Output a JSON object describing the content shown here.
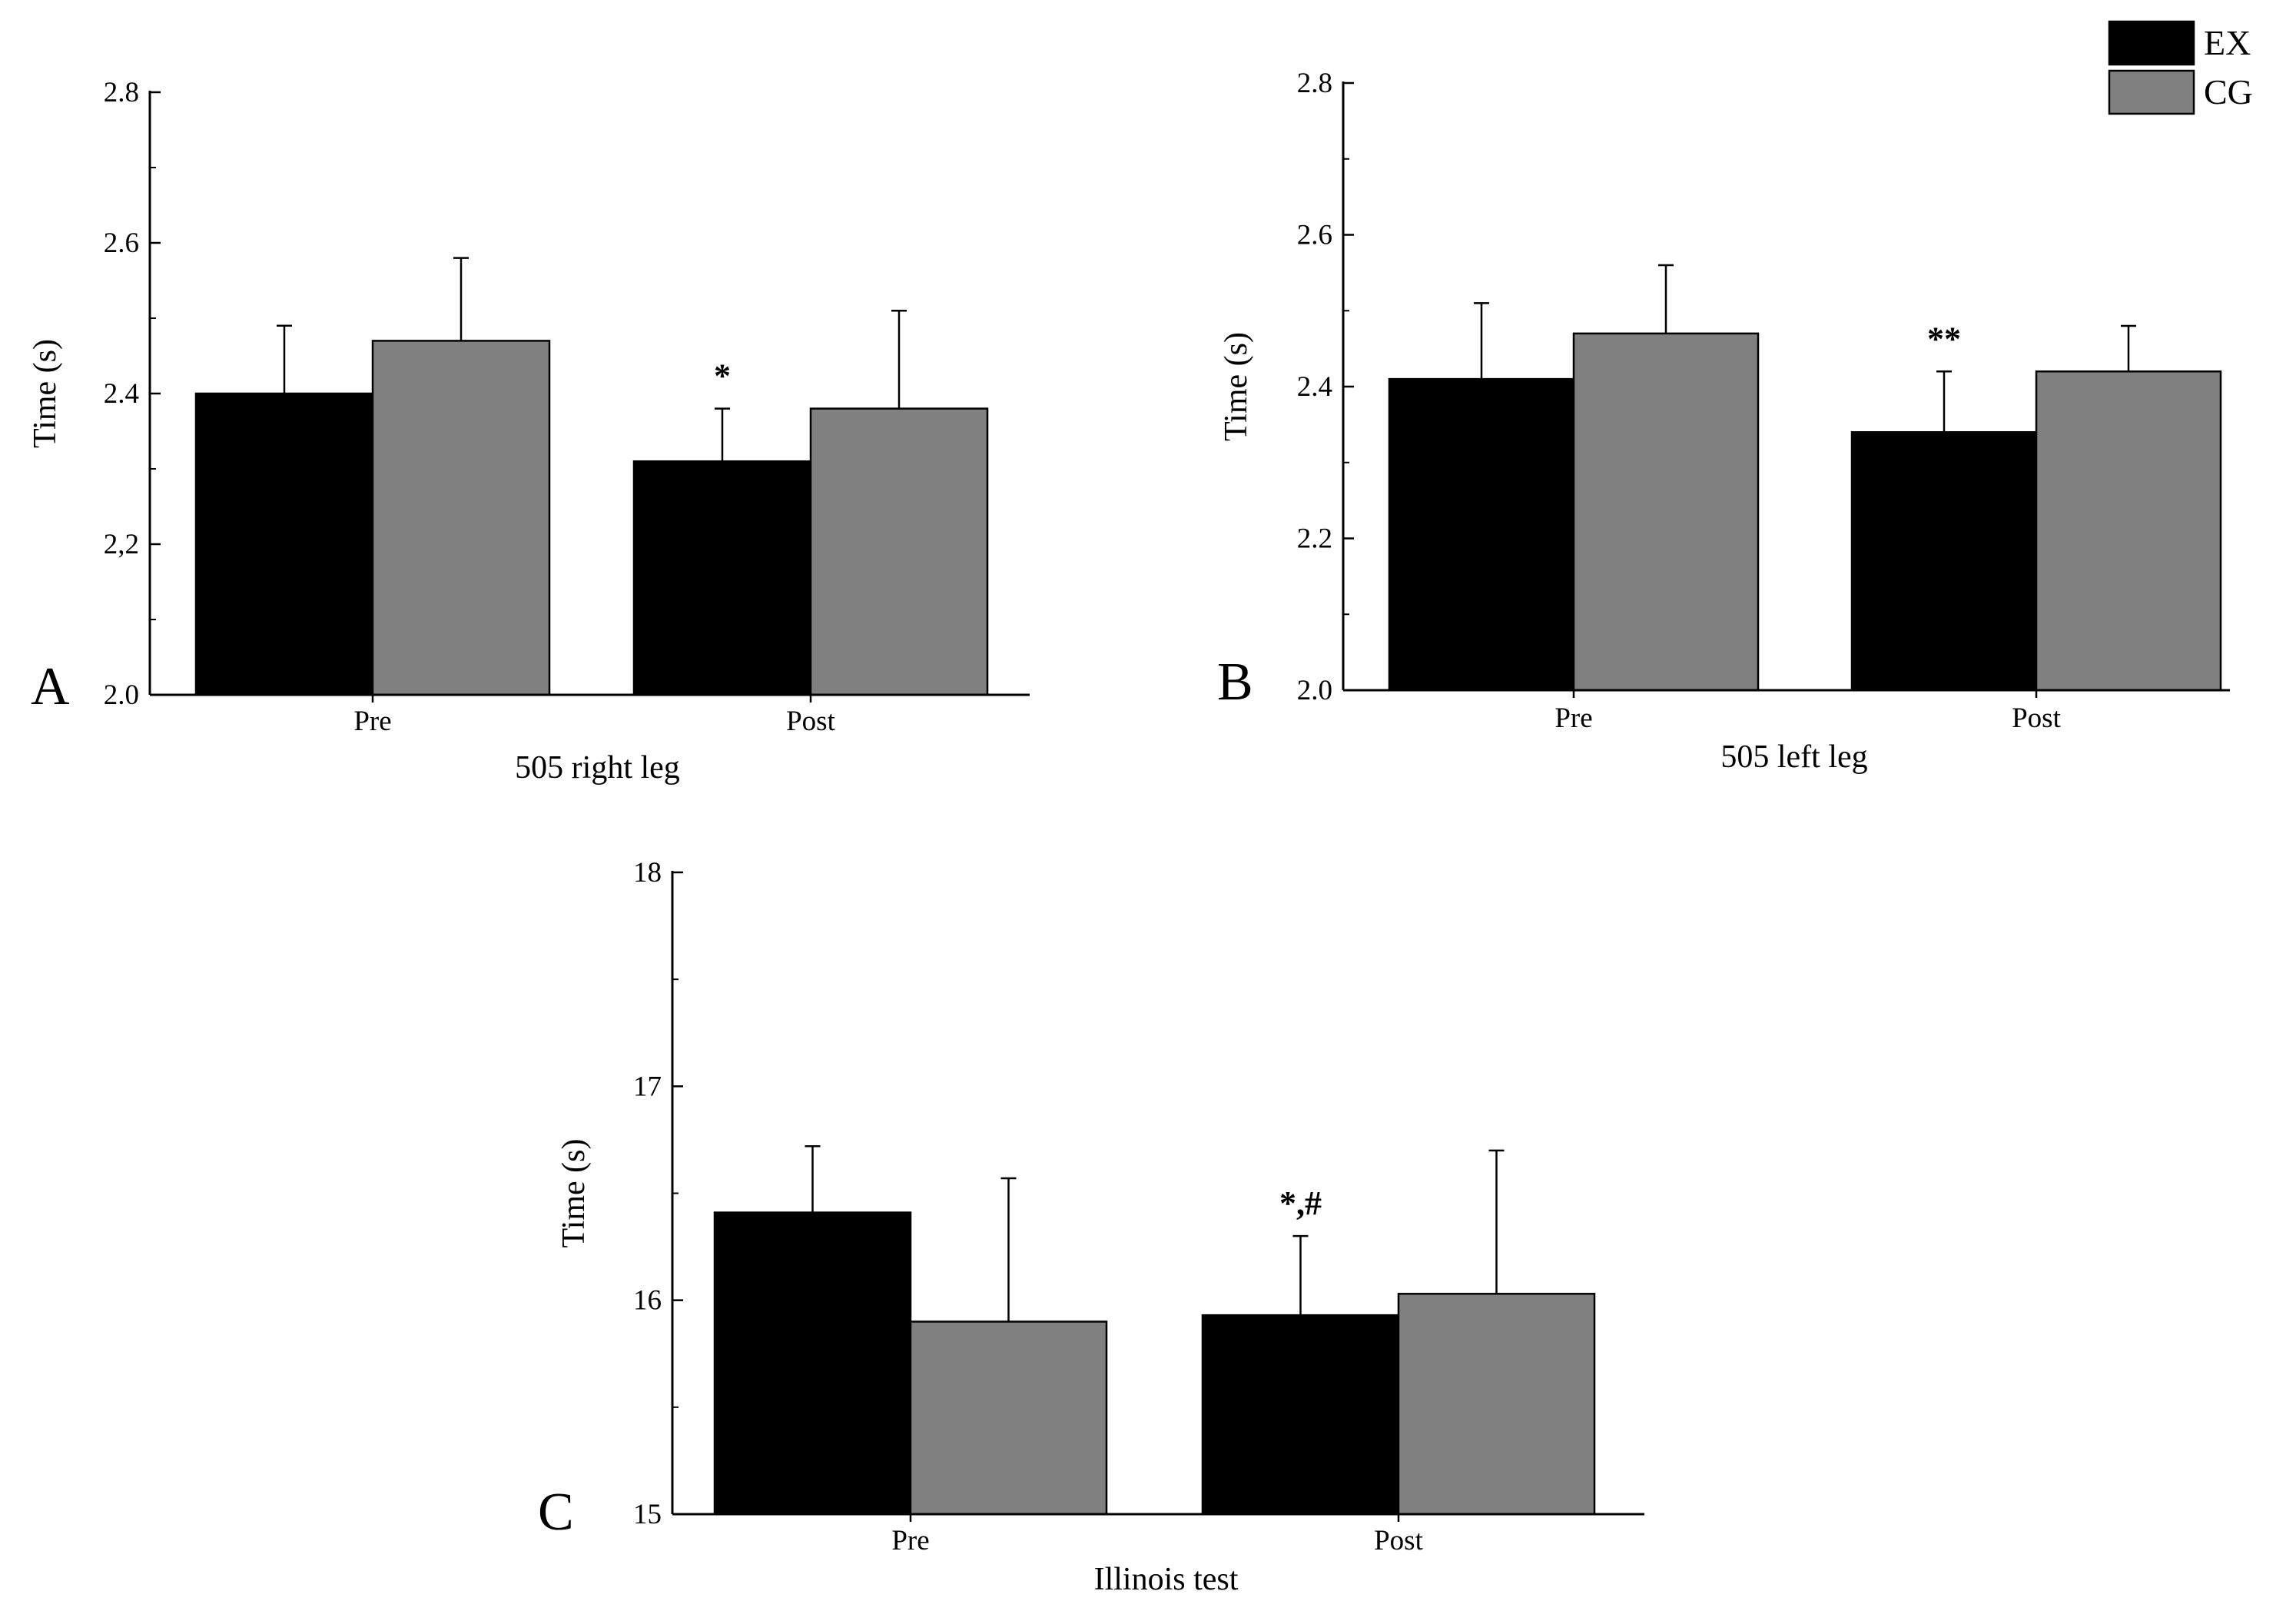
{
  "legend": [
    {
      "name": "EX",
      "color": "#000000"
    },
    {
      "name": "CG",
      "color": "#808080"
    }
  ],
  "chart_data": [
    {
      "type": "bar",
      "panel": "A",
      "xlabel": "505 right leg",
      "ylabel": "Time (s)",
      "ylim": [
        2.0,
        2.8
      ],
      "yticks": [
        "2.0",
        "2,2",
        "2.4",
        "2.6",
        "2.8"
      ],
      "categories": [
        "Pre",
        "Post"
      ],
      "series": [
        {
          "name": "EX",
          "values": [
            2.4,
            2.31
          ],
          "errors": [
            0.09,
            0.07
          ]
        },
        {
          "name": "CG",
          "values": [
            2.47,
            2.38
          ],
          "errors": [
            0.11,
            0.13
          ]
        }
      ],
      "annotations": [
        {
          "category": "Post",
          "series": "EX",
          "text": "*"
        }
      ]
    },
    {
      "type": "bar",
      "panel": "B",
      "xlabel": "505 left leg",
      "ylabel": "Time (s)",
      "ylim": [
        2.0,
        2.8
      ],
      "yticks": [
        "2.0",
        "2.2",
        "2.4",
        "2.6",
        "2.8"
      ],
      "categories": [
        "Pre",
        "Post"
      ],
      "series": [
        {
          "name": "EX",
          "values": [
            2.41,
            2.34
          ],
          "errors": [
            0.1,
            0.08
          ]
        },
        {
          "name": "CG",
          "values": [
            2.47,
            2.42
          ],
          "errors": [
            0.09,
            0.06
          ]
        }
      ],
      "annotations": [
        {
          "category": "Post",
          "series": "EX",
          "text": "**"
        }
      ]
    },
    {
      "type": "bar",
      "panel": "C",
      "xlabel": "Illinois test",
      "ylabel": "Time (s)",
      "ylim": [
        15,
        18
      ],
      "yticks": [
        "15",
        "16",
        "17",
        "18"
      ],
      "categories": [
        "Pre",
        "Post"
      ],
      "series": [
        {
          "name": "EX",
          "values": [
            16.41,
            15.93
          ],
          "errors": [
            0.31,
            0.37
          ]
        },
        {
          "name": "CG",
          "values": [
            15.9,
            16.03
          ],
          "errors": [
            0.67,
            0.67
          ]
        }
      ],
      "annotations": [
        {
          "category": "Post",
          "series": "EX",
          "text": "*,#"
        }
      ]
    }
  ]
}
